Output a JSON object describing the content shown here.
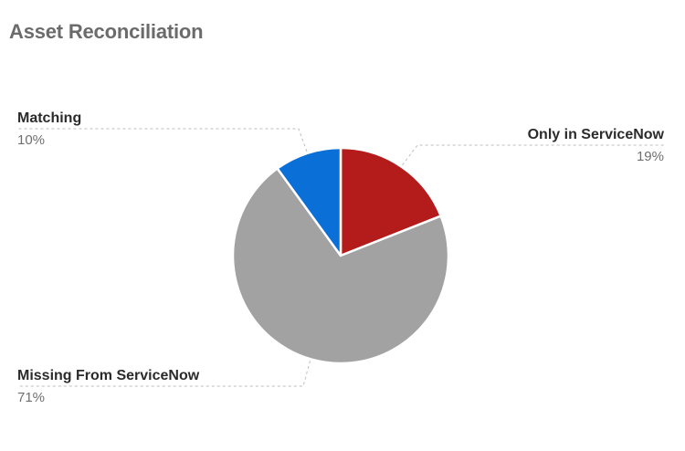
{
  "page": {
    "title": "Asset Reconciliation"
  },
  "chart_data": {
    "type": "pie",
    "title": "Asset Reconciliation",
    "start_angle_deg": 0,
    "direction": "clockwise",
    "slices": [
      {
        "label": "Only in ServiceNow",
        "value": 19,
        "pct_label": "19%",
        "color": "#b41c1c",
        "label_side": "right"
      },
      {
        "label": "Missing From ServiceNow",
        "value": 71,
        "pct_label": "71%",
        "color": "#a2a2a2",
        "label_side": "left"
      },
      {
        "label": "Matching",
        "value": 10,
        "pct_label": "10%",
        "color": "#0b6fd8",
        "label_side": "left"
      }
    ]
  }
}
